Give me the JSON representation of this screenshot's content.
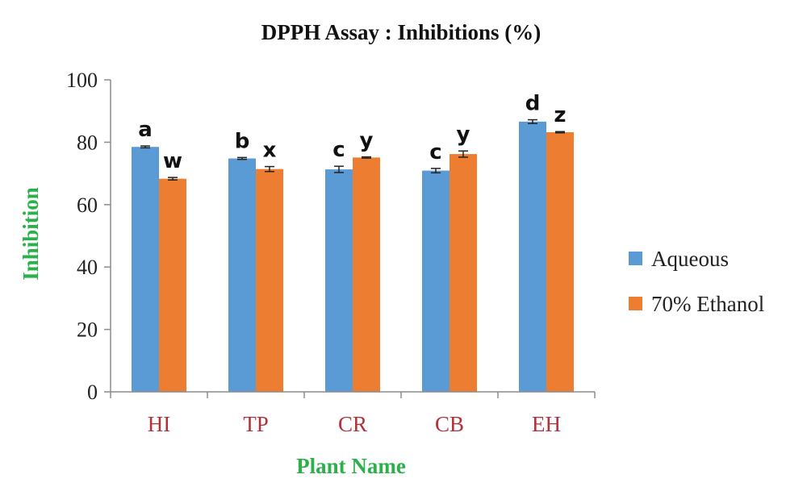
{
  "chart_data": {
    "type": "bar",
    "title": "DPPH Assay : Inhibitions (%)",
    "xlabel": "Plant Name",
    "ylabel": "Inhibition",
    "categories": [
      "HI",
      "TP",
      "CR",
      "CB",
      "EH"
    ],
    "ylim": [
      0,
      100
    ],
    "yticks": [
      0,
      20,
      40,
      60,
      80,
      100
    ],
    "grid": false,
    "legend_position": "right",
    "series": [
      {
        "name": "Aqueous",
        "color": "#5b9bd5",
        "values": [
          78.5,
          74.8,
          71.3,
          70.9,
          86.6
        ],
        "errors": [
          0.3,
          0.3,
          1.0,
          0.7,
          0.6
        ],
        "letters": [
          "a",
          "b",
          "c",
          "c",
          "d"
        ]
      },
      {
        "name": "70% Ethanol",
        "color": "#ed7d31",
        "values": [
          68.3,
          71.4,
          75.1,
          76.2,
          83.2
        ],
        "errors": [
          0.4,
          0.8,
          0.2,
          1.0,
          0.2
        ],
        "letters": [
          "w",
          "x",
          "y",
          "y",
          "z"
        ]
      }
    ]
  }
}
